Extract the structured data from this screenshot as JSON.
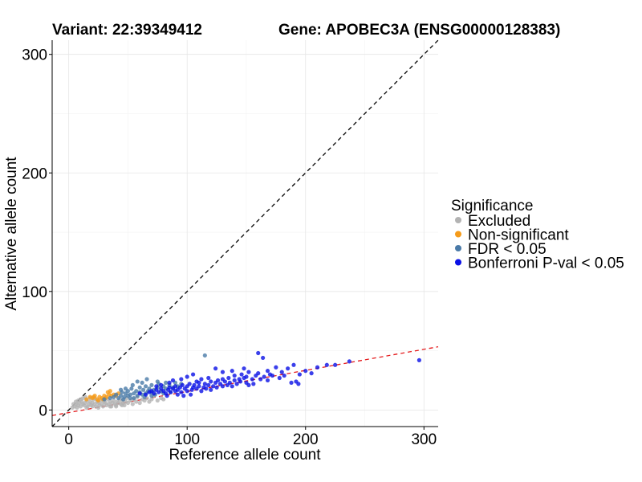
{
  "chart_data": {
    "type": "scatter",
    "title_left": "Variant: 22:39349412",
    "title_right": "Gene: APOBEC3A (ENSG00000128383)",
    "xlabel": "Reference allele count",
    "ylabel": "Alternative allele count",
    "xlim": [
      -14,
      312
    ],
    "ylim": [
      -14,
      312
    ],
    "xticks": [
      0,
      100,
      200,
      300
    ],
    "yticks": [
      0,
      100,
      200,
      300
    ],
    "xtick_labels": [
      "0",
      "100",
      "200",
      "300"
    ],
    "ytick_labels": [
      "0",
      "100",
      "200",
      "300"
    ],
    "grid": true,
    "legend": {
      "title": "Significance",
      "position": "right",
      "entries": [
        {
          "label": "Excluded",
          "color": "#b3b3b3"
        },
        {
          "label": "Non-significant",
          "color": "#f59b1a"
        },
        {
          "label": "FDR < 0.05",
          "color": "#4a7aa8"
        },
        {
          "label": "Bonferroni P-val < 0.05",
          "color": "#0a10e6"
        }
      ]
    },
    "reference_lines": [
      {
        "name": "identity",
        "slope": 1,
        "intercept": 0,
        "color": "#000000",
        "dash": "dashed"
      },
      {
        "name": "fit",
        "slope": 0.178,
        "intercept": -2.2,
        "color": "#e41a1c",
        "dash": "dashed"
      }
    ],
    "series": [
      {
        "name": "Excluded",
        "color": "#b3b3b3",
        "points": [
          [
            3,
            2
          ],
          [
            5,
            3
          ],
          [
            6,
            5
          ],
          [
            8,
            4
          ],
          [
            9,
            6
          ],
          [
            10,
            3
          ],
          [
            11,
            7
          ],
          [
            12,
            5
          ],
          [
            13,
            4
          ],
          [
            14,
            6
          ],
          [
            15,
            8
          ],
          [
            16,
            3
          ],
          [
            17,
            5
          ],
          [
            18,
            7
          ],
          [
            19,
            4
          ],
          [
            20,
            6
          ],
          [
            21,
            9
          ],
          [
            22,
            5
          ],
          [
            23,
            3
          ],
          [
            24,
            7
          ],
          [
            25,
            6
          ],
          [
            26,
            4
          ],
          [
            27,
            8
          ],
          [
            28,
            5
          ],
          [
            29,
            3
          ],
          [
            30,
            7
          ],
          [
            31,
            6
          ],
          [
            32,
            4
          ],
          [
            33,
            9
          ],
          [
            34,
            5
          ],
          [
            35,
            7
          ],
          [
            36,
            3
          ],
          [
            37,
            6
          ],
          [
            38,
            8
          ],
          [
            39,
            5
          ],
          [
            40,
            4
          ],
          [
            41,
            7
          ],
          [
            42,
            6
          ],
          [
            43,
            9
          ],
          [
            44,
            5
          ],
          [
            45,
            8
          ],
          [
            46,
            6
          ],
          [
            47,
            4
          ],
          [
            48,
            7
          ],
          [
            49,
            10
          ],
          [
            50,
            6
          ],
          [
            52,
            8
          ],
          [
            54,
            5
          ],
          [
            55,
            9
          ],
          [
            57,
            7
          ],
          [
            58,
            11
          ],
          [
            60,
            6
          ],
          [
            62,
            9
          ],
          [
            64,
            8
          ],
          [
            66,
            10
          ],
          [
            68,
            7
          ],
          [
            70,
            9
          ],
          [
            72,
            12
          ],
          [
            75,
            8
          ],
          [
            78,
            10
          ],
          [
            80,
            9
          ],
          [
            8,
            8
          ],
          [
            10,
            9
          ],
          [
            12,
            10
          ],
          [
            6,
            7
          ],
          [
            4,
            5
          ],
          [
            7,
            2
          ],
          [
            15,
            2
          ],
          [
            20,
            3
          ],
          [
            25,
            2
          ],
          [
            18,
            10
          ],
          [
            14,
            11
          ],
          [
            22,
            10
          ],
          [
            35,
            3
          ],
          [
            40,
            3
          ],
          [
            45,
            4
          ]
        ]
      },
      {
        "name": "Non-significant",
        "color": "#f59b1a",
        "points": [
          [
            15,
            9
          ],
          [
            18,
            11
          ],
          [
            20,
            10
          ],
          [
            22,
            12
          ],
          [
            24,
            9
          ],
          [
            26,
            11
          ],
          [
            28,
            10
          ],
          [
            30,
            12
          ],
          [
            32,
            11
          ],
          [
            34,
            13
          ],
          [
            36,
            12
          ],
          [
            33,
            15
          ],
          [
            35,
            16
          ],
          [
            38,
            13
          ],
          [
            40,
            12
          ],
          [
            25,
            8
          ],
          [
            29,
            9
          ],
          [
            42,
            14
          ],
          [
            31,
            10
          ],
          [
            21,
            11
          ]
        ]
      },
      {
        "name": "FDR < 0.05",
        "color": "#4a7aa8",
        "points": [
          [
            30,
            9
          ],
          [
            35,
            10
          ],
          [
            38,
            11
          ],
          [
            40,
            13
          ],
          [
            42,
            10
          ],
          [
            44,
            12
          ],
          [
            45,
            15
          ],
          [
            47,
            11
          ],
          [
            48,
            14
          ],
          [
            50,
            12
          ],
          [
            50,
            16
          ],
          [
            52,
            13
          ],
          [
            53,
            18
          ],
          [
            55,
            14
          ],
          [
            55,
            10
          ],
          [
            57,
            16
          ],
          [
            58,
            12
          ],
          [
            60,
            15
          ],
          [
            60,
            19
          ],
          [
            62,
            13
          ],
          [
            63,
            17
          ],
          [
            65,
            14
          ],
          [
            65,
            20
          ],
          [
            67,
            16
          ],
          [
            68,
            18
          ],
          [
            70,
            15
          ],
          [
            70,
            21
          ],
          [
            72,
            17
          ],
          [
            73,
            13
          ],
          [
            75,
            19
          ],
          [
            76,
            22
          ],
          [
            78,
            16
          ],
          [
            80,
            20
          ],
          [
            82,
            18
          ],
          [
            85,
            21
          ],
          [
            88,
            19
          ],
          [
            90,
            23
          ],
          [
            92,
            20
          ],
          [
            95,
            22
          ],
          [
            46,
            9
          ],
          [
            54,
            21
          ],
          [
            58,
            24
          ],
          [
            62,
            23
          ],
          [
            48,
            18
          ],
          [
            66,
            26
          ],
          [
            75,
            24
          ],
          [
            82,
            23
          ],
          [
            115,
            46
          ],
          [
            44,
            17
          ],
          [
            52,
            10
          ],
          [
            64,
            11
          ],
          [
            70,
            12
          ],
          [
            80,
            14
          ],
          [
            86,
            15
          ]
        ]
      },
      {
        "name": "Bonferroni P-val < 0.05",
        "color": "#0a10e6",
        "points": [
          [
            60,
            14
          ],
          [
            65,
            13
          ],
          [
            68,
            15
          ],
          [
            70,
            16
          ],
          [
            72,
            14
          ],
          [
            74,
            17
          ],
          [
            76,
            15
          ],
          [
            78,
            18
          ],
          [
            80,
            16
          ],
          [
            82,
            14
          ],
          [
            84,
            17
          ],
          [
            85,
            19
          ],
          [
            86,
            15
          ],
          [
            88,
            18
          ],
          [
            90,
            16
          ],
          [
            90,
            20
          ],
          [
            92,
            17
          ],
          [
            94,
            19
          ],
          [
            95,
            15
          ],
          [
            96,
            21
          ],
          [
            98,
            18
          ],
          [
            100,
            16
          ],
          [
            100,
            20
          ],
          [
            102,
            22
          ],
          [
            104,
            17
          ],
          [
            105,
            19
          ],
          [
            106,
            21
          ],
          [
            108,
            18
          ],
          [
            110,
            20
          ],
          [
            110,
            23
          ],
          [
            112,
            16
          ],
          [
            114,
            19
          ],
          [
            115,
            22
          ],
          [
            116,
            18
          ],
          [
            118,
            21
          ],
          [
            120,
            24
          ],
          [
            120,
            17
          ],
          [
            122,
            20
          ],
          [
            124,
            23
          ],
          [
            125,
            19
          ],
          [
            126,
            25
          ],
          [
            128,
            22
          ],
          [
            130,
            20
          ],
          [
            130,
            26
          ],
          [
            132,
            24
          ],
          [
            134,
            21
          ],
          [
            135,
            27
          ],
          [
            136,
            23
          ],
          [
            138,
            20
          ],
          [
            140,
            25
          ],
          [
            140,
            29
          ],
          [
            142,
            22
          ],
          [
            144,
            26
          ],
          [
            145,
            24
          ],
          [
            146,
            30
          ],
          [
            148,
            27
          ],
          [
            150,
            23
          ],
          [
            150,
            28
          ],
          [
            152,
            32
          ],
          [
            155,
            26
          ],
          [
            156,
            22
          ],
          [
            158,
            29
          ],
          [
            160,
            31
          ],
          [
            162,
            26
          ],
          [
            165,
            28
          ],
          [
            168,
            33
          ],
          [
            170,
            30
          ],
          [
            175,
            36
          ],
          [
            178,
            27
          ],
          [
            180,
            32
          ],
          [
            185,
            35
          ],
          [
            190,
            38
          ],
          [
            192,
            24
          ],
          [
            195,
            30
          ],
          [
            200,
            33
          ],
          [
            205,
            31
          ],
          [
            210,
            36
          ],
          [
            218,
            38
          ],
          [
            225,
            38
          ],
          [
            237,
            41
          ],
          [
            296,
            42
          ],
          [
            95,
            26
          ],
          [
            100,
            28
          ],
          [
            105,
            30
          ],
          [
            108,
            24
          ],
          [
            112,
            26
          ],
          [
            118,
            27
          ],
          [
            85,
            23
          ],
          [
            88,
            25
          ],
          [
            92,
            13
          ],
          [
            97,
            12
          ],
          [
            103,
            13
          ],
          [
            124,
            35
          ],
          [
            130,
            32
          ],
          [
            138,
            33
          ],
          [
            148,
            35
          ],
          [
            152,
            21
          ],
          [
            160,
            48
          ],
          [
            164,
            44
          ],
          [
            168,
            25
          ],
          [
            172,
            29
          ],
          [
            182,
            29
          ],
          [
            188,
            23
          ],
          [
            194,
            22
          ],
          [
            78,
            21
          ],
          [
            74,
            20
          ],
          [
            83,
            12
          ]
        ]
      }
    ]
  }
}
